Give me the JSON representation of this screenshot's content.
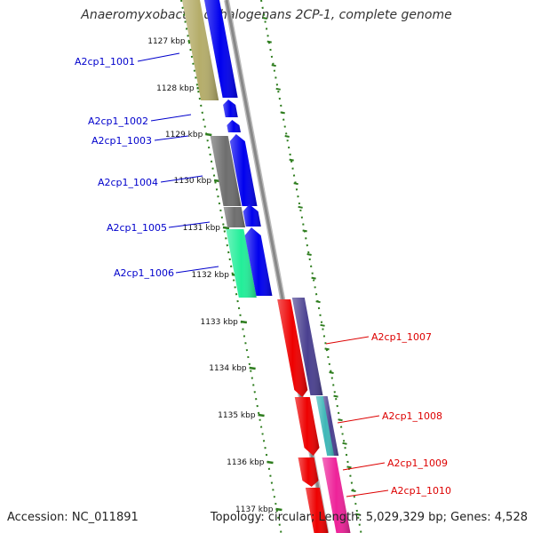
{
  "title": "Anaeromyxobacter dehalogenans 2CP-1, complete genome",
  "footer": {
    "accession_prefix": "Accession: ",
    "accession": "NC_011891",
    "topology_prefix": "Topology: ",
    "topology": "circular",
    "length_prefix": "; Length: ",
    "length": "5,029,329 bp",
    "genes_prefix": "; Genes: ",
    "genes": "4,528"
  },
  "colors": {
    "forward_label": "#0000cc",
    "reverse_label": "#dd0000",
    "backbone": "#888888",
    "tick_dots": "#2e7d1e"
  },
  "ticks": [
    "1127 kbp",
    "1128 kbp",
    "1129 kbp",
    "1130 kbp",
    "1131 kbp",
    "1132 kbp",
    "1133 kbp",
    "1134 kbp",
    "1135 kbp",
    "1136 kbp",
    "1137 kbp"
  ],
  "genes_forward": [
    {
      "label": "A2cp1_1001",
      "strand": "+",
      "color": "#0000ee"
    },
    {
      "label": "A2cp1_1002",
      "strand": "+",
      "color": "#0000ee"
    },
    {
      "label": "A2cp1_1003",
      "strand": "+",
      "color": "#0000ee"
    },
    {
      "label": "A2cp1_1004",
      "strand": "+",
      "color": "#0000ee"
    },
    {
      "label": "A2cp1_1005",
      "strand": "+",
      "color": "#0000ee"
    },
    {
      "label": "A2cp1_1006",
      "strand": "+",
      "color": "#0000ee"
    }
  ],
  "genes_reverse": [
    {
      "label": "A2cp1_1007",
      "strand": "-",
      "color": "#ee0000"
    },
    {
      "label": "A2cp1_1008",
      "strand": "-",
      "color": "#ee0000"
    },
    {
      "label": "A2cp1_1009",
      "strand": "-",
      "color": "#ee0000"
    },
    {
      "label": "A2cp1_1010",
      "strand": "-",
      "color": "#ee0000"
    }
  ],
  "features": [
    {
      "name": "olive-feature",
      "color": "#b5ad6a"
    },
    {
      "name": "gray-feature",
      "color": "#6e6e6e"
    },
    {
      "name": "mint-feature",
      "color": "#22ee99"
    },
    {
      "name": "indigo-feature",
      "color": "#4a4090"
    },
    {
      "name": "teal-feature",
      "color": "#3fb8b8"
    },
    {
      "name": "magenta-feature",
      "color": "#ee2299"
    }
  ]
}
